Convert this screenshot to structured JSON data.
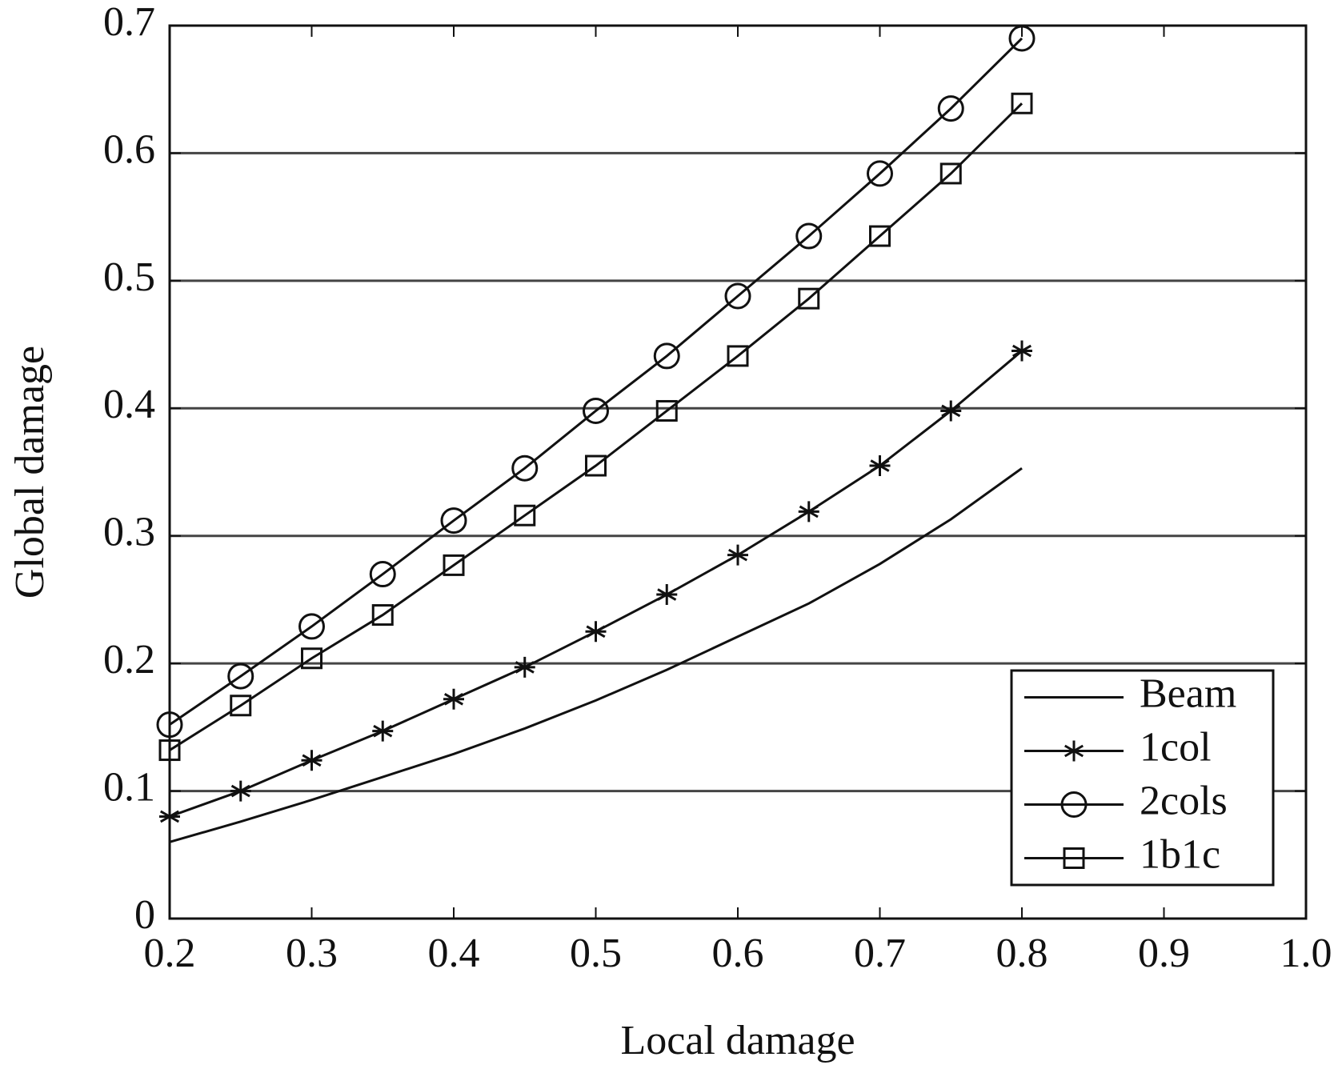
{
  "chart_data": {
    "type": "line",
    "x_label": "Local damage",
    "y_label": "Global damage",
    "x": [
      0.2,
      0.25,
      0.3,
      0.35,
      0.4,
      0.45,
      0.5,
      0.55,
      0.6,
      0.65,
      0.7,
      0.75,
      0.8
    ],
    "series": [
      {
        "name": "Beam",
        "color": "#111111",
        "marker": "none",
        "values": [
          0.06,
          0.076,
          0.093,
          0.111,
          0.129,
          0.149,
          0.171,
          0.195,
          0.221,
          0.247,
          0.278,
          0.313,
          0.353
        ]
      },
      {
        "name": "1col",
        "color": "#111111",
        "marker": "asterisk",
        "values": [
          0.08,
          0.1,
          0.124,
          0.147,
          0.172,
          0.197,
          0.225,
          0.254,
          0.285,
          0.319,
          0.355,
          0.398,
          0.445
        ]
      },
      {
        "name": "2cols",
        "color": "#111111",
        "marker": "circle",
        "values": [
          0.152,
          0.19,
          0.229,
          0.27,
          0.312,
          0.353,
          0.398,
          0.441,
          0.488,
          0.535,
          0.584,
          0.635,
          0.69
        ]
      },
      {
        "name": "1b1c",
        "color": "#111111",
        "marker": "square",
        "values": [
          0.132,
          0.167,
          0.204,
          0.238,
          0.277,
          0.316,
          0.355,
          0.398,
          0.441,
          0.486,
          0.535,
          0.584,
          0.639
        ]
      }
    ],
    "xlim": [
      0.2,
      1
    ],
    "ylim": [
      0,
      0.7
    ],
    "xticks": [
      0.2,
      0.3,
      0.4,
      0.5,
      0.6,
      0.7,
      0.8,
      0.9,
      {
        "value": 1,
        "label": "1.0"
      }
    ],
    "yticks": [
      0,
      0.1,
      0.2,
      0.3,
      0.4,
      0.5,
      0.6,
      0.7
    ],
    "grid": "y",
    "legend": "lower right"
  }
}
